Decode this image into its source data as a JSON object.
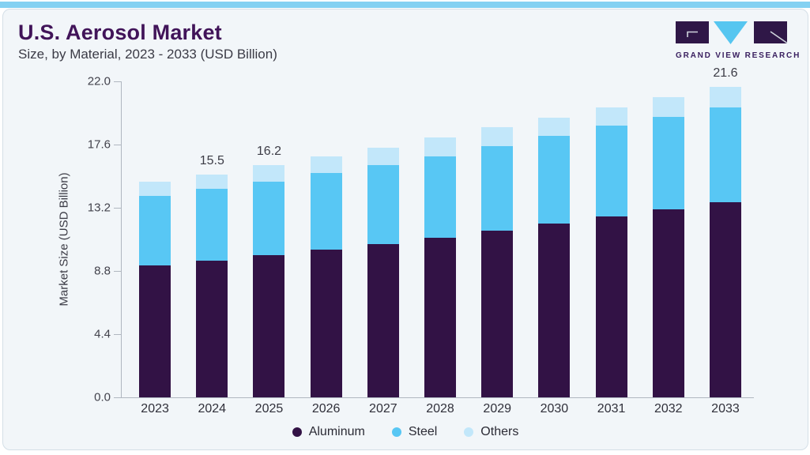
{
  "page": {
    "accent_bar_color": "#84D1F2"
  },
  "header": {
    "title": "U.S. Aerosol Market",
    "subtitle": "Size, by Material, 2023 - 2033 (USD Billion)",
    "brand": "GRAND VIEW RESEARCH"
  },
  "chart_data": {
    "type": "bar",
    "stacked": true,
    "title": "U.S. Aerosol Market Size, by Material, 2023 - 2033 (USD Billion)",
    "categories": [
      "2023",
      "2024",
      "2025",
      "2026",
      "2027",
      "2028",
      "2029",
      "2030",
      "2031",
      "2032",
      "2033"
    ],
    "series": [
      {
        "name": "Aluminum",
        "color": "#321245",
        "values": [
          9.2,
          9.5,
          9.9,
          10.3,
          10.7,
          11.1,
          11.6,
          12.1,
          12.6,
          13.1,
          13.6
        ]
      },
      {
        "name": "Steel",
        "color": "#58C7F4",
        "values": [
          4.8,
          5.0,
          5.1,
          5.3,
          5.5,
          5.7,
          5.9,
          6.1,
          6.3,
          6.4,
          6.6
        ]
      },
      {
        "name": "Others",
        "color": "#C2E7FA",
        "values": [
          1.0,
          1.0,
          1.2,
          1.2,
          1.2,
          1.3,
          1.3,
          1.3,
          1.3,
          1.4,
          1.4
        ]
      }
    ],
    "totals": [
      15.0,
      15.5,
      16.2,
      16.8,
      17.4,
      18.1,
      18.8,
      19.5,
      20.2,
      20.9,
      21.6
    ],
    "value_labels": {
      "2024": "15.5",
      "2025": "16.2",
      "2033": "21.6"
    },
    "xlabel": "",
    "ylabel": "Market Size (USD Billion)",
    "ylim": [
      0,
      22
    ],
    "yticks": [
      "22.0",
      "17.6",
      "13.2",
      "8.8",
      "4.4",
      "0.0"
    ],
    "grid": false,
    "legend_position": "bottom"
  }
}
